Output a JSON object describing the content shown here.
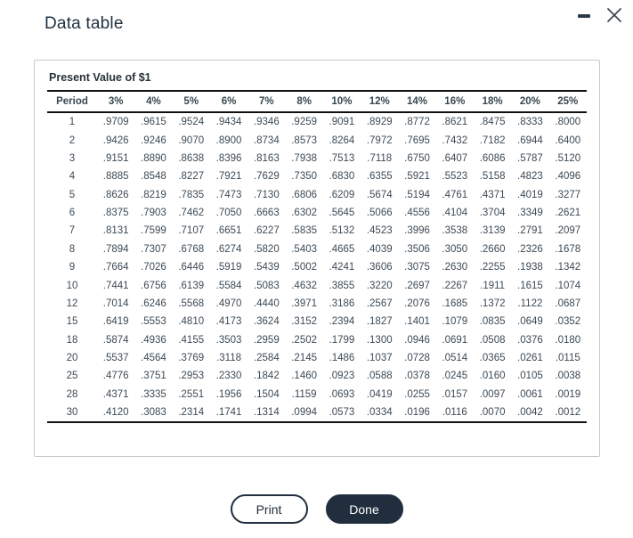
{
  "window": {
    "title": "Data table",
    "controls": {
      "minimize_icon": "minimize-dash",
      "close_icon": "close-x"
    }
  },
  "table": {
    "caption": "Present Value of $1",
    "columns": [
      "Period",
      "3%",
      "4%",
      "5%",
      "6%",
      "7%",
      "8%",
      "10%",
      "12%",
      "14%",
      "16%",
      "18%",
      "20%",
      "25%"
    ],
    "rows": [
      [
        "1",
        ".9709",
        ".9615",
        ".9524",
        ".9434",
        ".9346",
        ".9259",
        ".9091",
        ".8929",
        ".8772",
        ".8621",
        ".8475",
        ".8333",
        ".8000"
      ],
      [
        "2",
        ".9426",
        ".9246",
        ".9070",
        ".8900",
        ".8734",
        ".8573",
        ".8264",
        ".7972",
        ".7695",
        ".7432",
        ".7182",
        ".6944",
        ".6400"
      ],
      [
        "3",
        ".9151",
        ".8890",
        ".8638",
        ".8396",
        ".8163",
        ".7938",
        ".7513",
        ".7118",
        ".6750",
        ".6407",
        ".6086",
        ".5787",
        ".5120"
      ],
      [
        "4",
        ".8885",
        ".8548",
        ".8227",
        ".7921",
        ".7629",
        ".7350",
        ".6830",
        ".6355",
        ".5921",
        ".5523",
        ".5158",
        ".4823",
        ".4096"
      ],
      [
        "5",
        ".8626",
        ".8219",
        ".7835",
        ".7473",
        ".7130",
        ".6806",
        ".6209",
        ".5674",
        ".5194",
        ".4761",
        ".4371",
        ".4019",
        ".3277"
      ],
      [
        "6",
        ".8375",
        ".7903",
        ".7462",
        ".7050",
        ".6663",
        ".6302",
        ".5645",
        ".5066",
        ".4556",
        ".4104",
        ".3704",
        ".3349",
        ".2621"
      ],
      [
        "7",
        ".8131",
        ".7599",
        ".7107",
        ".6651",
        ".6227",
        ".5835",
        ".5132",
        ".4523",
        ".3996",
        ".3538",
        ".3139",
        ".2791",
        ".2097"
      ],
      [
        "8",
        ".7894",
        ".7307",
        ".6768",
        ".6274",
        ".5820",
        ".5403",
        ".4665",
        ".4039",
        ".3506",
        ".3050",
        ".2660",
        ".2326",
        ".1678"
      ],
      [
        "9",
        ".7664",
        ".7026",
        ".6446",
        ".5919",
        ".5439",
        ".5002",
        ".4241",
        ".3606",
        ".3075",
        ".2630",
        ".2255",
        ".1938",
        ".1342"
      ],
      [
        "10",
        ".7441",
        ".6756",
        ".6139",
        ".5584",
        ".5083",
        ".4632",
        ".3855",
        ".3220",
        ".2697",
        ".2267",
        ".1911",
        ".1615",
        ".1074"
      ],
      [
        "12",
        ".7014",
        ".6246",
        ".5568",
        ".4970",
        ".4440",
        ".3971",
        ".3186",
        ".2567",
        ".2076",
        ".1685",
        ".1372",
        ".1122",
        ".0687"
      ],
      [
        "15",
        ".6419",
        ".5553",
        ".4810",
        ".4173",
        ".3624",
        ".3152",
        ".2394",
        ".1827",
        ".1401",
        ".1079",
        ".0835",
        ".0649",
        ".0352"
      ],
      [
        "18",
        ".5874",
        ".4936",
        ".4155",
        ".3503",
        ".2959",
        ".2502",
        ".1799",
        ".1300",
        ".0946",
        ".0691",
        ".0508",
        ".0376",
        ".0180"
      ],
      [
        "20",
        ".5537",
        ".4564",
        ".3769",
        ".3118",
        ".2584",
        ".2145",
        ".1486",
        ".1037",
        ".0728",
        ".0514",
        ".0365",
        ".0261",
        ".0115"
      ],
      [
        "25",
        ".4776",
        ".3751",
        ".2953",
        ".2330",
        ".1842",
        ".1460",
        ".0923",
        ".0588",
        ".0378",
        ".0245",
        ".0160",
        ".0105",
        ".0038"
      ],
      [
        "28",
        ".4371",
        ".3335",
        ".2551",
        ".1956",
        ".1504",
        ".1159",
        ".0693",
        ".0419",
        ".0255",
        ".0157",
        ".0097",
        ".0061",
        ".0019"
      ],
      [
        "30",
        ".4120",
        ".3083",
        ".2314",
        ".1741",
        ".1314",
        ".0994",
        ".0573",
        ".0334",
        ".0196",
        ".0116",
        ".0070",
        ".0042",
        ".0012"
      ]
    ]
  },
  "buttons": {
    "print_label": "Print",
    "done_label": "Done"
  },
  "colors": {
    "accent_dark": "#212e3e",
    "panel_border": "#c9c9c9",
    "rule": "#111111",
    "title_text": "#1f3040"
  }
}
